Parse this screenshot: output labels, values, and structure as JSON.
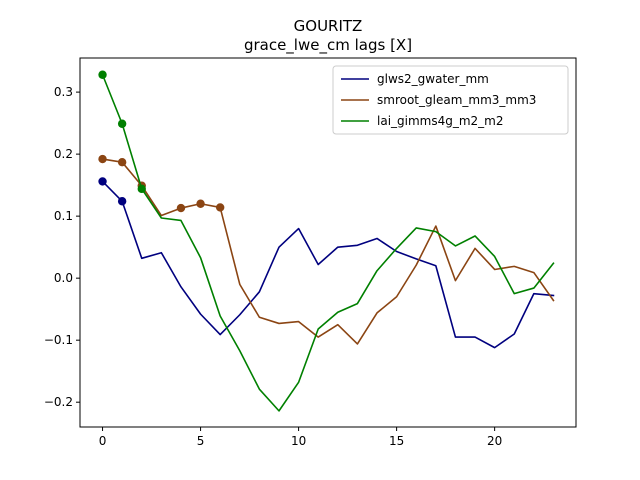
{
  "chart_data": {
    "type": "line",
    "title": "GOURITZ",
    "subtitle": "grace_lwe_cm lags [X]",
    "xlabel": "",
    "ylabel": "",
    "xlim": [
      -1.15,
      24.15
    ],
    "ylim": [
      -0.24,
      0.355
    ],
    "x_ticks": [
      0,
      5,
      10,
      15,
      20
    ],
    "y_ticks": [
      -0.2,
      -0.1,
      0.0,
      0.1,
      0.2,
      0.3
    ],
    "y_tick_labels": [
      "−0.2",
      "−0.1",
      "0.0",
      "0.1",
      "0.2",
      "0.3"
    ],
    "grid": false,
    "legend_position": "top-right",
    "x": [
      0,
      1,
      2,
      3,
      4,
      5,
      6,
      7,
      8,
      9,
      10,
      11,
      12,
      13,
      14,
      15,
      16,
      17,
      18,
      19,
      20,
      21,
      22,
      23
    ],
    "series": [
      {
        "name": "glws2_gwater_mm",
        "color": "#00007f",
        "values": [
          0.156,
          0.124,
          0.032,
          0.041,
          -0.014,
          -0.058,
          -0.091,
          -0.059,
          -0.022,
          0.05,
          0.08,
          0.022,
          0.05,
          0.053,
          0.064,
          0.043,
          0.031,
          0.02,
          -0.095,
          -0.095,
          -0.112,
          -0.09,
          -0.025,
          -0.028
        ],
        "markers": [
          0,
          1
        ]
      },
      {
        "name": "smroot_gleam_mm3_mm3",
        "color": "#8b4513",
        "values": [
          0.192,
          0.187,
          0.149,
          0.101,
          0.113,
          0.12,
          0.114,
          -0.01,
          -0.063,
          -0.073,
          -0.07,
          -0.095,
          -0.075,
          -0.106,
          -0.056,
          -0.03,
          0.021,
          0.084,
          -0.004,
          0.048,
          0.014,
          0.019,
          0.009,
          -0.036
        ],
        "markers": [
          0,
          1,
          2,
          4,
          5,
          6
        ]
      },
      {
        "name": "lai_gimms4g_m2_m2",
        "color": "#008000",
        "values": [
          0.328,
          0.249,
          0.144,
          0.097,
          0.093,
          0.033,
          -0.061,
          -0.117,
          -0.179,
          -0.214,
          -0.168,
          -0.082,
          -0.055,
          -0.041,
          0.012,
          0.048,
          0.081,
          0.075,
          0.052,
          0.068,
          0.035,
          -0.025,
          -0.016,
          0.024
        ],
        "markers": [
          0,
          1,
          2
        ]
      }
    ]
  }
}
